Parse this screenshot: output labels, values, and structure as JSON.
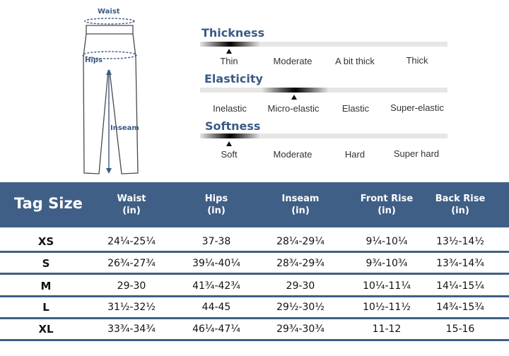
{
  "diagram": {
    "labels": {
      "waist": "Waist",
      "hips": "Hips",
      "inseam": "Inseam"
    }
  },
  "attributes": [
    {
      "title": "Thickness",
      "options": [
        "Thin",
        "Moderate",
        "A bit thick",
        "Thick"
      ],
      "selected": "Thin"
    },
    {
      "title": "Elasticity",
      "options": [
        "Inelastic",
        "Micro-elastic",
        "Elastic",
        "Super-elastic"
      ],
      "selected": "Micro-elastic"
    },
    {
      "title": "Softness",
      "options": [
        "Soft",
        "Moderate",
        "Hard",
        "Super hard"
      ],
      "selected": "Soft"
    }
  ],
  "colors": {
    "header_bg": "#3f5f86",
    "accent": "#3a5a86"
  },
  "table": {
    "title": "Tag Size",
    "headers": [
      {
        "name": "Waist",
        "unit": "(in)"
      },
      {
        "name": "Hips",
        "unit": "(in)"
      },
      {
        "name": "Inseam",
        "unit": "(in)"
      },
      {
        "name": "Front Rise",
        "unit": "(in)"
      },
      {
        "name": "Back Rise",
        "unit": "(in)"
      }
    ],
    "rows": [
      [
        "XS",
        "24¼-25¼",
        "37-38",
        "28¼-29¼",
        "9¼-10¼",
        "13½-14½"
      ],
      [
        "S",
        "26¾-27¾",
        "39¼-40¼",
        "28¾-29¾",
        "9¾-10¾",
        "13¾-14¾"
      ],
      [
        "M",
        "29-30",
        "41¾-42¾",
        "29-30",
        "10¼-11¼",
        "14¼-15¼"
      ],
      [
        "L",
        "31½-32½",
        "44-45",
        "29½-30½",
        "10½-11½",
        "14¾-15¾"
      ],
      [
        "XL",
        "33¾-34¾",
        "46¼-47¼",
        "29¾-30¾",
        "11-12",
        "15-16"
      ]
    ]
  }
}
